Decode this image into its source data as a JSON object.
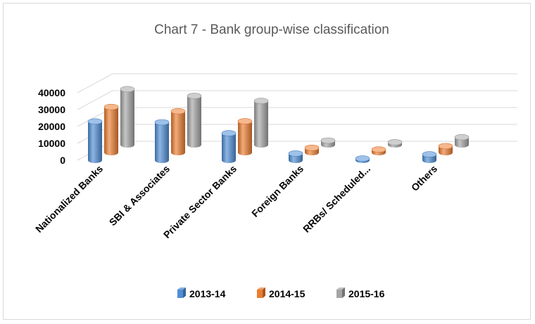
{
  "chart_data": {
    "type": "bar",
    "title": "Chart 7 - Bank group-wise classification",
    "xlabel": "",
    "ylabel": "",
    "categories": [
      "Nationalized Banks",
      "SBI & Associates",
      "Private Sector Banks",
      "Foreign Banks",
      "RRBs/ Scheduled...",
      "Others"
    ],
    "series": [
      {
        "name": "2013-14",
        "values": [
          23000,
          22500,
          16000,
          4000,
          1000,
          3500
        ],
        "color": "#4f8ed6"
      },
      {
        "name": "2014-15",
        "values": [
          27000,
          24500,
          18500,
          2800,
          1800,
          3800
        ],
        "color": "#ed7d31"
      },
      {
        "name": "2015-16",
        "values": [
          33000,
          29000,
          26000,
          2500,
          1500,
          4500
        ],
        "color": "#a5a5a5"
      }
    ],
    "yticks": [
      "0",
      "10000",
      "20000",
      "30000",
      "40000"
    ],
    "ylim": [
      0,
      40000
    ],
    "grid": true,
    "legend_position": "bottom",
    "style": "3d-cylinder"
  }
}
